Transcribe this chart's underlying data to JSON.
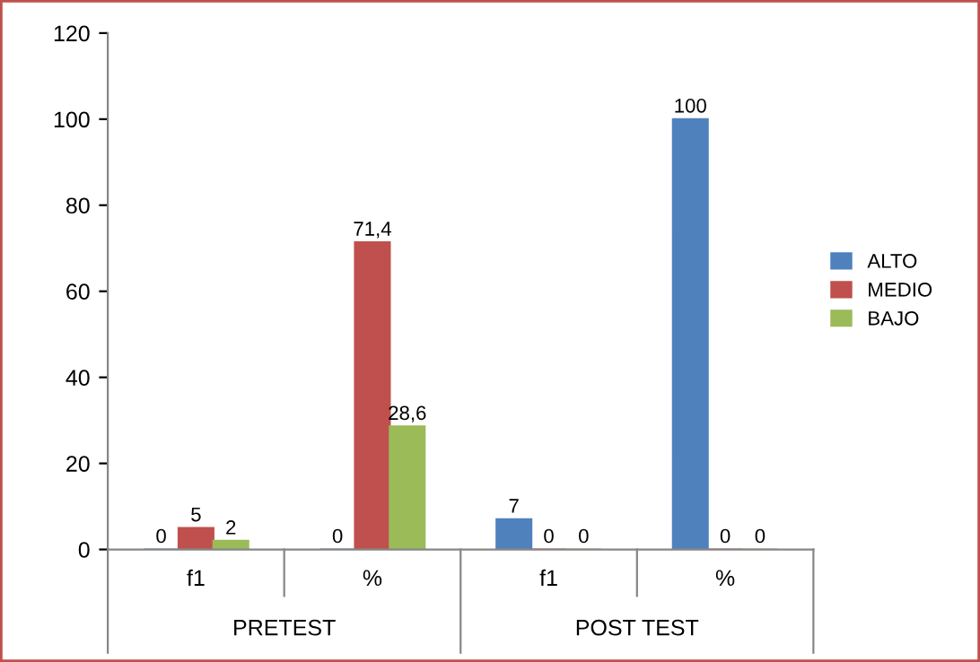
{
  "chart_data": {
    "type": "bar",
    "categories": [
      "f1",
      "%",
      "f1",
      "%"
    ],
    "series": [
      {
        "name": "ALTO",
        "color": "#4f81bd",
        "values": [
          0,
          0,
          7,
          100
        ],
        "value_labels": [
          "0",
          "0",
          "7",
          "100"
        ]
      },
      {
        "name": "MEDIO",
        "color": "#c0504d",
        "values": [
          5,
          71.4,
          0,
          0
        ],
        "value_labels": [
          "5",
          "71,4",
          "0",
          "0"
        ]
      },
      {
        "name": "BAJO",
        "color": "#9bbb59",
        "values": [
          2,
          28.6,
          0,
          0
        ],
        "value_labels": [
          "2",
          "28,6",
          "0",
          "0"
        ]
      }
    ],
    "annotations": [
      "PRETEST",
      "POST TEST"
    ],
    "ylim": [
      0,
      120
    ],
    "yticks": [
      0,
      20,
      40,
      60,
      80,
      100,
      120
    ],
    "grid": false,
    "legend": "right"
  }
}
